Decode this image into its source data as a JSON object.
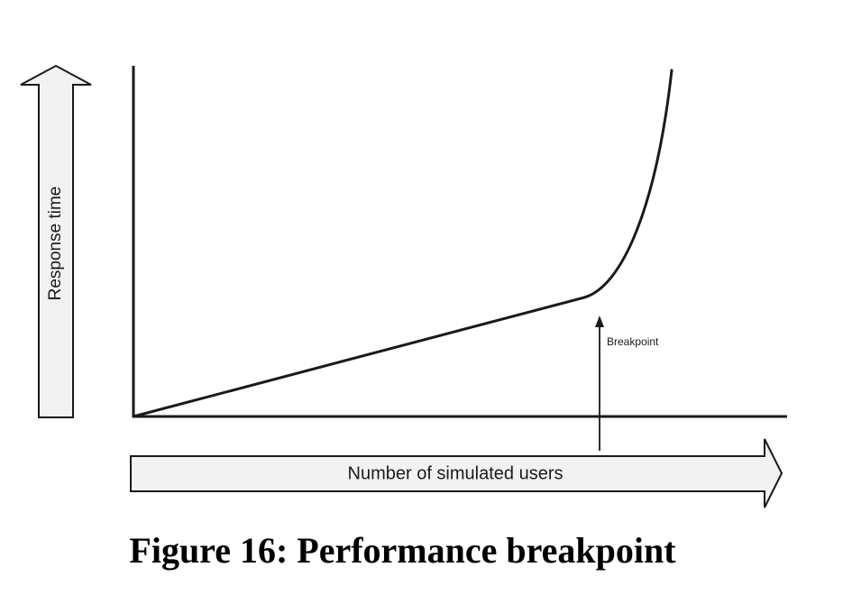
{
  "diagram": {
    "y_arrow_label": "Response time",
    "x_arrow_label": "Number of simulated users",
    "breakpoint_label": "Breakpoint",
    "arrow_fill": "#f2f2f2",
    "stroke_color": "#1a1a1a"
  },
  "caption": "Figure 16: Performance breakpoint"
}
